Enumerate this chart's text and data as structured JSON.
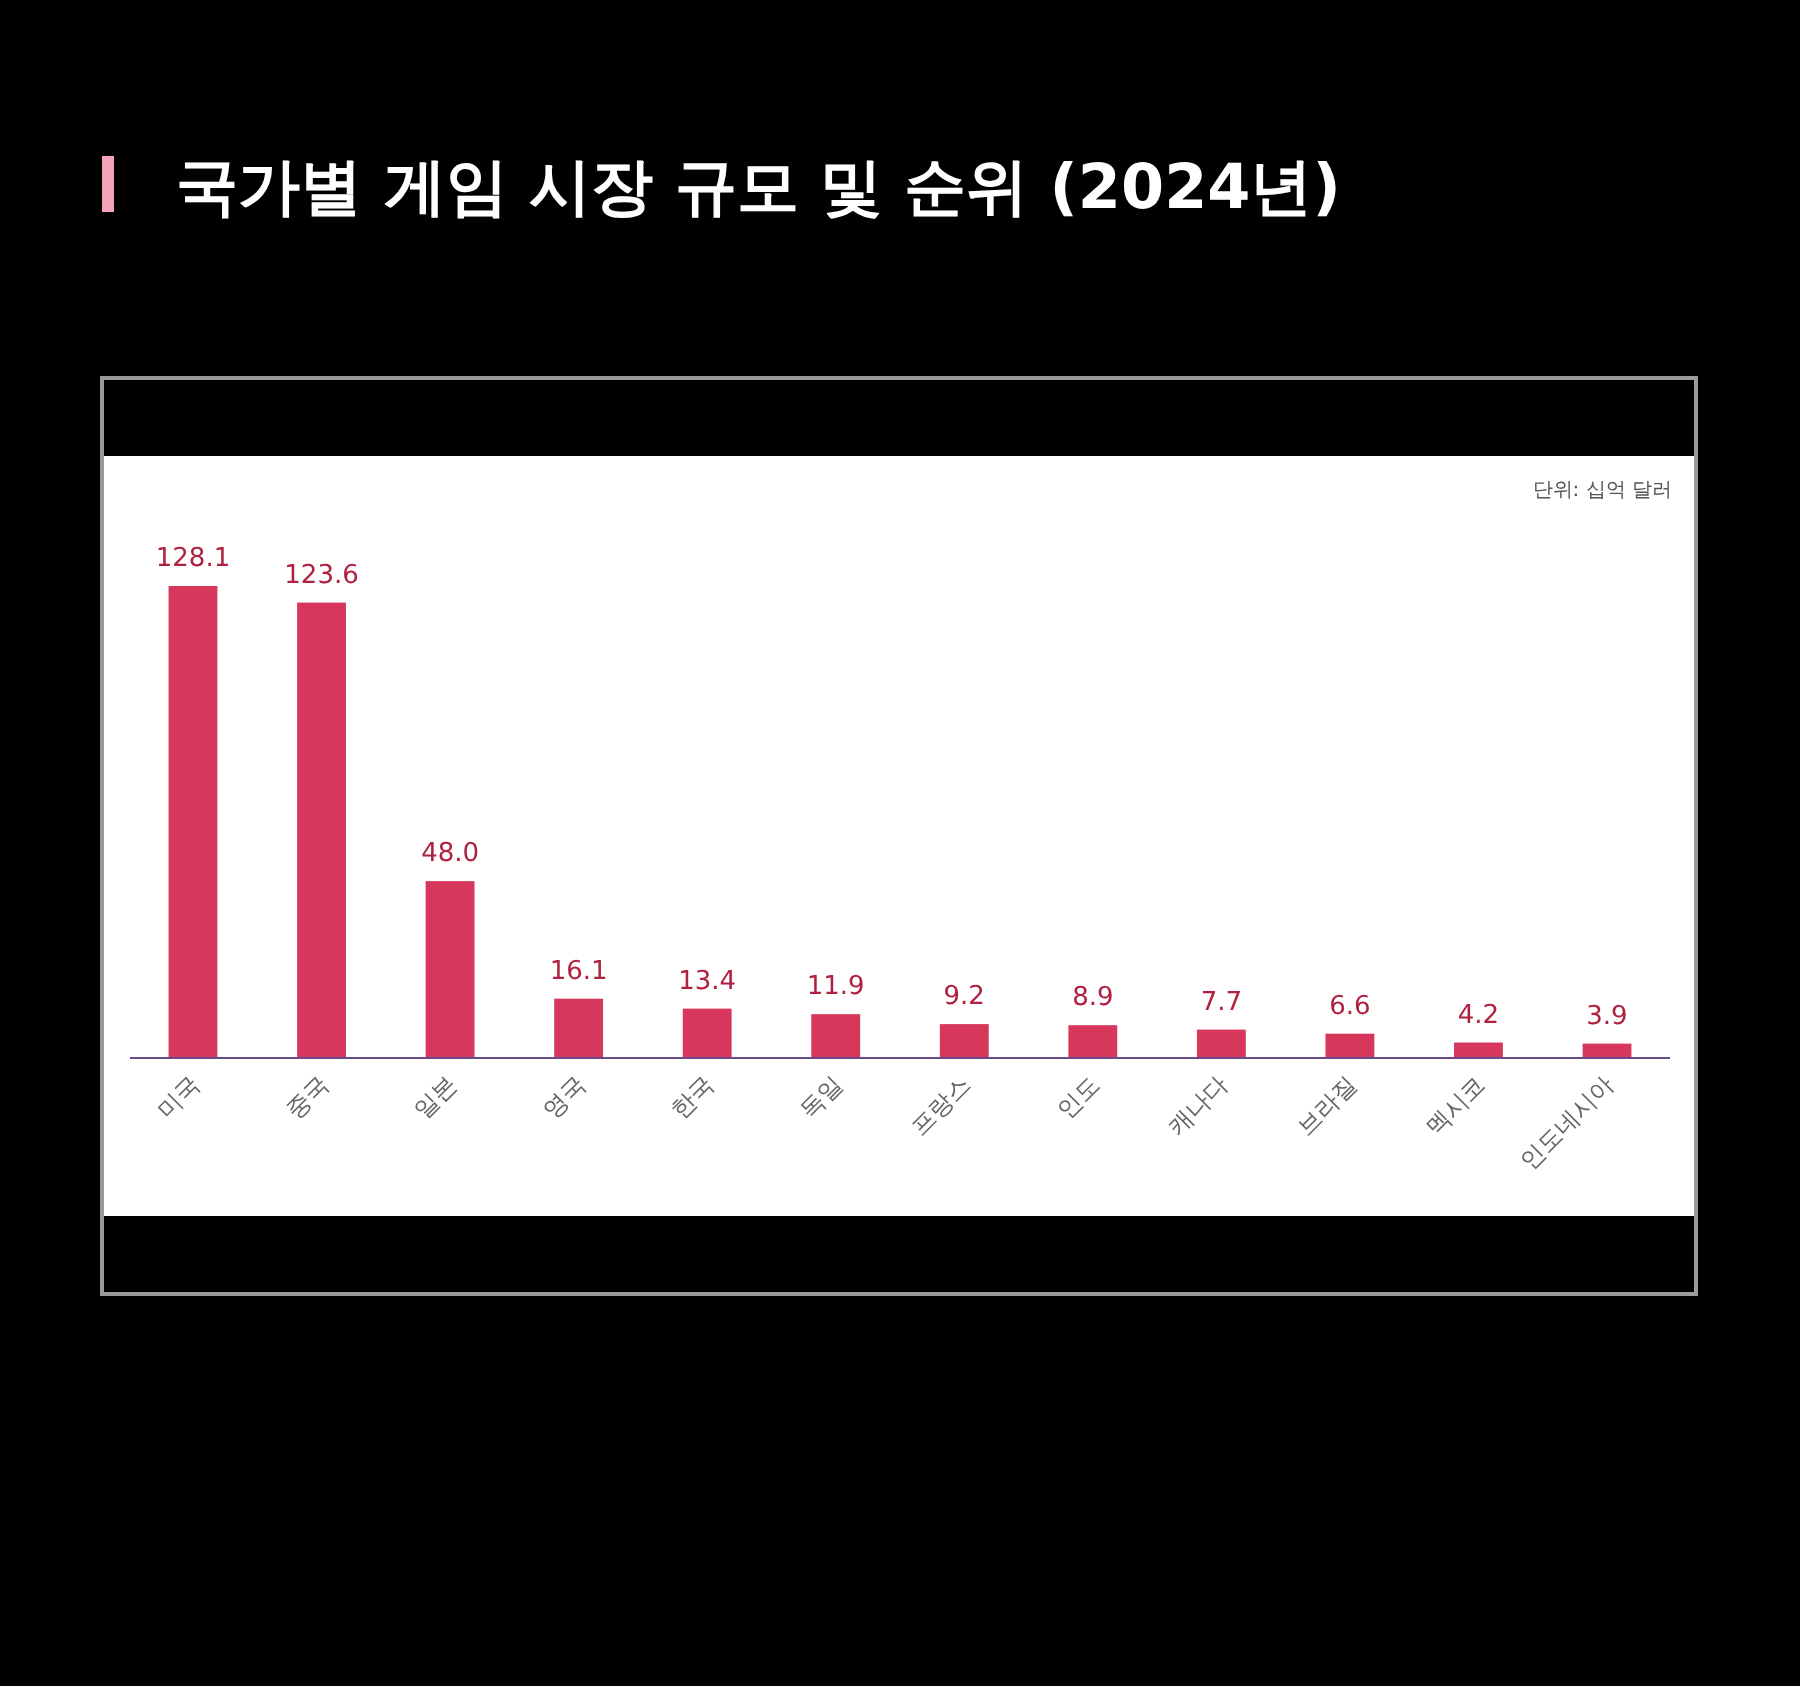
{
  "chart_data": {
    "type": "bar",
    "title": "국가별 게임 시장 규모 및 순위 (2024년)",
    "categories": [
      "미국",
      "중국",
      "일본",
      "영국",
      "한국",
      "독일",
      "프랑스",
      "인도",
      "캐나다",
      "브라질",
      "멕시코",
      "인도네시아"
    ],
    "values": [
      128.1,
      123.6,
      48.0,
      16.1,
      13.4,
      11.9,
      9.2,
      8.9,
      7.7,
      6.6,
      4.2,
      3.9
    ],
    "value_labels": [
      "128.1",
      "123.6",
      "48.0",
      "16.1",
      "13.4",
      "11.9",
      "9.2",
      "8.9",
      "7.7",
      "6.6",
      "4.2",
      "3.9"
    ],
    "color": "#d6375a",
    "annotations": [
      "단위: 십억 달러"
    ]
  }
}
